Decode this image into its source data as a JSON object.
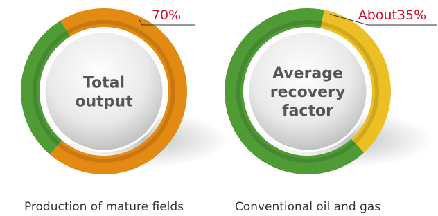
{
  "chart_data": [
    {
      "type": "donut",
      "center_label": [
        "Total",
        "output"
      ],
      "values": [
        70
      ],
      "value_labels": [
        "70%"
      ],
      "color": "#e38a12",
      "rest_color": "#4f9b36",
      "caption": "Production of mature fields"
    },
    {
      "type": "donut",
      "center_label": [
        "Average",
        "recovery",
        "factor"
      ],
      "values": [
        35
      ],
      "value_labels": [
        "About35%"
      ],
      "color": "#ecc024",
      "rest_color": "#4f9b36",
      "caption": "Conventional oil and gas"
    }
  ]
}
